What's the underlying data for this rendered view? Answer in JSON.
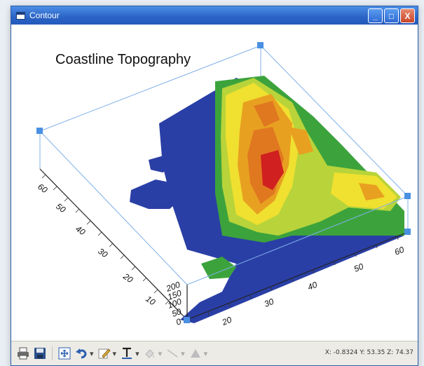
{
  "window": {
    "title": "Contour"
  },
  "window_controls": {
    "minimize": "_",
    "maximize": "□",
    "close": "X"
  },
  "plot": {
    "title": "Coastline Topography",
    "left_axis_ticks": [
      "60",
      "50",
      "40",
      "30",
      "20",
      "10"
    ],
    "front_axis_ticks": [
      "20",
      "30",
      "40",
      "50",
      "60"
    ],
    "vertical_axis_ticks": [
      "200",
      "150",
      "100",
      "50",
      "0"
    ]
  },
  "toolbar": {
    "buttons": [
      {
        "name": "print-button",
        "icon": "printer-icon"
      },
      {
        "name": "save-button",
        "icon": "floppy-disk-icon"
      },
      {
        "name": "fit-button",
        "icon": "fit-to-window-icon"
      },
      {
        "name": "undo-button",
        "icon": "undo-arrow-icon"
      },
      {
        "name": "draw-button",
        "icon": "pencil-icon"
      },
      {
        "name": "text-button",
        "icon": "text-T-icon"
      },
      {
        "name": "color-button",
        "icon": "paint-icon"
      },
      {
        "name": "line-button",
        "icon": "line-icon"
      },
      {
        "name": "fill-button",
        "icon": "triangle-icon"
      }
    ],
    "dropdown_arrow": "▾"
  },
  "status": {
    "coords": "X: -0.8324 Y: 53.35 Z: 74.37"
  },
  "colors": {
    "titlebar": "#2a64c6",
    "ocean": "#2a3fa6",
    "low": "#3ca33c",
    "mid": "#f0e030",
    "high": "#e07820",
    "peak": "#d02020",
    "axis": "#4a90e2"
  }
}
